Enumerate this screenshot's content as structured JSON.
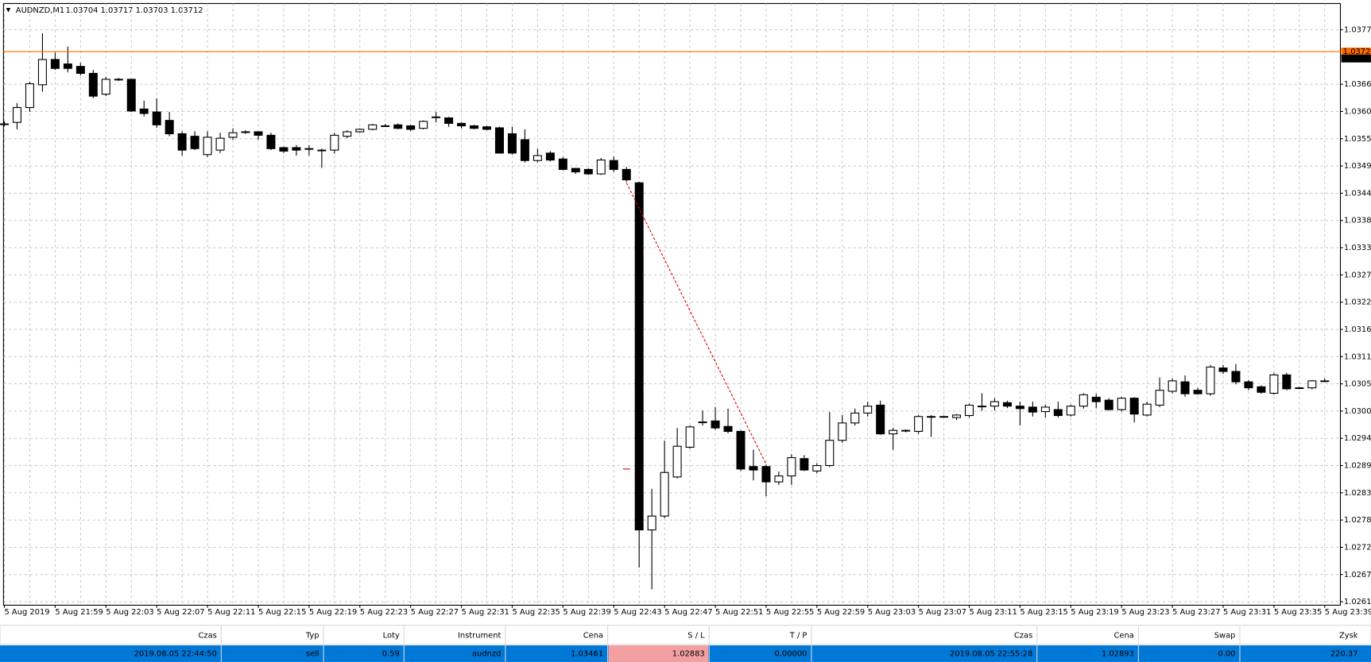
{
  "chart_data": {
    "type": "candlestick",
    "title": "AUDNZD,M1",
    "ohlc_text": "1.03704 1.03717 1.03703 1.03712",
    "categories": [
      "5 Aug 2019",
      null,
      null,
      null,
      "5 Aug 21:59",
      null,
      null,
      null,
      "5 Aug 22:03",
      null,
      null,
      null,
      "5 Aug 22:07",
      null,
      null,
      null,
      "5 Aug 22:11",
      null,
      null,
      null,
      "5 Aug 22:15",
      null,
      null,
      null,
      "5 Aug 22:19",
      null,
      null,
      null,
      "5 Aug 22:23",
      null,
      null,
      null,
      "5 Aug 22:27",
      null,
      null,
      null,
      "5 Aug 22:31",
      null,
      null,
      null,
      "5 Aug 22:35",
      null,
      null,
      null,
      "5 Aug 22:39",
      null,
      null,
      null,
      "5 Aug 22:43",
      null,
      null,
      null,
      "5 Aug 22:47",
      null,
      null,
      null,
      "5 Aug 22:51",
      null,
      null,
      null,
      "5 Aug 22:55",
      null,
      null,
      null,
      "5 Aug 22:59",
      null,
      null,
      null,
      "5 Aug 23:03",
      null,
      null,
      null,
      "5 Aug 23:07",
      null,
      null,
      null,
      "5 Aug 23:11",
      null,
      null,
      null,
      "5 Aug 23:15",
      null,
      null,
      null,
      "5 Aug 23:19",
      null,
      null,
      null,
      "5 Aug 23:23",
      null,
      null,
      null,
      "5 Aug 23:27",
      null,
      null,
      null,
      "5 Aug 23:31",
      null,
      null,
      null,
      "5 Aug 23:35",
      null,
      null,
      null,
      "5 Aug 23:39"
    ],
    "open": [
      1.0358,
      1.03583,
      1.03613,
      1.03659,
      1.0371,
      1.03701,
      1.03696,
      1.03682,
      1.0364,
      1.0367,
      1.0367,
      1.0361,
      1.03604,
      1.03587,
      1.0356,
      1.03555,
      1.03518,
      1.03527,
      1.03553,
      1.03564,
      1.03564,
      1.03557,
      1.03532,
      1.03532,
      1.0353,
      1.03527,
      1.03527,
      1.03555,
      1.03564,
      1.03569,
      1.03576,
      1.03578,
      1.03576,
      1.03571,
      1.03594,
      1.03592,
      1.03581,
      1.03576,
      1.03574,
      1.03572,
      1.0356,
      1.03548,
      1.03506,
      1.03521,
      1.03509,
      1.0349,
      1.03488,
      1.03479,
      1.03506,
      1.03488,
      1.03461,
      1.0276,
      1.02788,
      1.02867,
      1.02927,
      1.02978,
      1.0298,
      1.02969,
      1.02959,
      1.02888,
      1.02888,
      1.02857,
      1.02869,
      1.02904,
      1.02879,
      1.0289,
      1.02941,
      1.02976,
      1.02996,
      1.03012,
      1.02954,
      1.02961,
      1.02959,
      1.02989,
      1.02989,
      1.02987,
      1.02991,
      1.0301,
      1.0301,
      1.03017,
      1.0301,
      1.03008,
      1.02999,
      1.03003,
      1.02992,
      1.0301,
      1.03028,
      1.03022,
      1.03003,
      1.03026,
      1.02992,
      1.03012,
      1.0304,
      1.03059,
      1.03042,
      1.03035,
      1.03087,
      1.0308,
      1.03059,
      1.03049,
      1.03036,
      1.03073,
      1.03047,
      1.03047,
      1.03061
    ],
    "high": [
      1.03585,
      1.03622,
      1.03665,
      1.03763,
      1.03724,
      1.03736,
      1.03703,
      1.03689,
      1.03675,
      1.03673,
      1.03671,
      1.03627,
      1.03631,
      1.03604,
      1.03565,
      1.03565,
      1.03565,
      1.03562,
      1.03571,
      1.03567,
      1.03565,
      1.03562,
      1.03534,
      1.03537,
      1.03537,
      1.0353,
      1.03562,
      1.03567,
      1.03571,
      1.0358,
      1.0358,
      1.03581,
      1.03578,
      1.03587,
      1.03604,
      1.03594,
      1.03583,
      1.03578,
      1.03576,
      1.03574,
      1.03574,
      1.03569,
      1.0353,
      1.03525,
      1.03513,
      1.03491,
      1.0349,
      1.03511,
      1.03514,
      1.03493,
      1.03463,
      1.02843,
      1.0294,
      1.02966,
      1.02971,
      1.03001,
      1.03008,
      1.03005,
      1.02961,
      1.02922,
      1.02892,
      1.02878,
      1.02913,
      1.02911,
      1.02895,
      1.02998,
      1.02992,
      1.03005,
      1.03019,
      1.03021,
      1.02966,
      1.02963,
      1.02992,
      1.02992,
      1.02991,
      1.02994,
      1.03015,
      1.03036,
      1.03026,
      1.03021,
      1.03019,
      1.03019,
      1.03013,
      1.03019,
      1.03013,
      1.03036,
      1.03035,
      1.03026,
      1.03029,
      1.03028,
      1.03019,
      1.03068,
      1.03066,
      1.03072,
      1.03047,
      1.03093,
      1.03093,
      1.03095,
      1.03063,
      1.03052,
      1.03077,
      1.03077,
      1.03049,
      1.03063,
      1.03066
    ],
    "low": [
      1.03575,
      1.03569,
      1.03604,
      1.03645,
      1.03689,
      1.03684,
      1.03678,
      1.03632,
      1.03636,
      1.03667,
      1.03604,
      1.03595,
      1.03572,
      1.03555,
      1.03516,
      1.03527,
      1.03513,
      1.03521,
      1.03548,
      1.0356,
      1.03548,
      1.03527,
      1.03521,
      1.03516,
      1.03516,
      1.03491,
      1.0352,
      1.03551,
      1.03562,
      1.03567,
      1.03574,
      1.03569,
      1.03565,
      1.03569,
      1.03583,
      1.03574,
      1.03571,
      1.03569,
      1.03567,
      1.0352,
      1.03518,
      1.03502,
      1.03502,
      1.03504,
      1.03486,
      1.03479,
      1.03477,
      1.03477,
      1.03483,
      1.03463,
      1.02684,
      1.0264,
      1.02784,
      1.02864,
      1.02924,
      1.02971,
      1.02962,
      1.02955,
      1.02879,
      1.0286,
      1.02828,
      1.02851,
      1.02851,
      1.02879,
      1.02874,
      1.02887,
      1.02936,
      1.02971,
      1.02989,
      1.02952,
      1.02922,
      1.02957,
      1.02954,
      1.02948,
      1.02987,
      1.02982,
      1.02987,
      1.03001,
      1.03001,
      1.03006,
      1.02971,
      1.02989,
      1.02987,
      1.02987,
      1.02989,
      1.03005,
      1.03006,
      1.03001,
      1.02999,
      1.02977,
      1.02989,
      1.03008,
      1.03036,
      1.03029,
      1.03033,
      1.03031,
      1.03075,
      1.03054,
      1.03042,
      1.03035,
      1.03033,
      1.03042,
      1.03044,
      1.03044,
      1.03059
    ],
    "close": [
      1.0358,
      1.03613,
      1.03661,
      1.0371,
      1.03692,
      1.03692,
      1.03682,
      1.03636,
      1.0367,
      1.0367,
      1.03606,
      1.03601,
      1.03578,
      1.0356,
      1.03527,
      1.0353,
      1.03553,
      1.03551,
      1.03562,
      1.03564,
      1.03557,
      1.0353,
      1.03525,
      1.03527,
      1.0353,
      1.03527,
      1.03557,
      1.03564,
      1.03569,
      1.03578,
      1.03576,
      1.03571,
      1.03569,
      1.03585,
      1.03594,
      1.03581,
      1.03576,
      1.03571,
      1.03569,
      1.03521,
      1.03521,
      1.03506,
      1.03516,
      1.03507,
      1.03488,
      1.03483,
      1.03479,
      1.03507,
      1.03488,
      1.03467,
      1.0276,
      1.02788,
      1.02876,
      1.02929,
      1.02968,
      1.02978,
      1.02966,
      1.02959,
      1.02883,
      1.02881,
      1.02857,
      1.02869,
      1.02906,
      1.02881,
      1.0289,
      1.02941,
      1.02976,
      1.02996,
      1.0301,
      1.02954,
      1.02961,
      1.02961,
      1.02989,
      1.02989,
      1.02989,
      1.02992,
      1.03012,
      1.0301,
      1.03019,
      1.0301,
      1.03005,
      1.02998,
      1.03008,
      1.02991,
      1.0301,
      1.03033,
      1.03019,
      1.03003,
      1.03026,
      1.02994,
      1.03014,
      1.03042,
      1.03061,
      1.03035,
      1.03035,
      1.03089,
      1.0308,
      1.03059,
      1.03047,
      1.03038,
      1.03073,
      1.03045,
      1.03047,
      1.03061,
      1.03061
    ],
    "up_color": "#ffffff",
    "down_color": "#000000",
    "ylim": [
      1.02608,
      1.03823
    ],
    "yticks": [
      {
        "value": 1.0377,
        "label": "1.03770"
      },
      {
        "value": 1.0366,
        "label": "1.03660"
      },
      {
        "value": 1.03605,
        "label": "1.03605"
      },
      {
        "value": 1.0355,
        "label": "1.03550"
      },
      {
        "value": 1.03495,
        "label": "1.03495"
      },
      {
        "value": 1.0344,
        "label": "1.03440"
      },
      {
        "value": 1.03385,
        "label": "1.03385"
      },
      {
        "value": 1.0333,
        "label": "1.03330"
      },
      {
        "value": 1.03275,
        "label": "1.03275"
      },
      {
        "value": 1.0322,
        "label": "1.03220"
      },
      {
        "value": 1.03165,
        "label": "1.03165"
      },
      {
        "value": 1.0311,
        "label": "1.03110"
      },
      {
        "value": 1.03055,
        "label": "1.03055"
      },
      {
        "value": 1.03,
        "label": "1.03000"
      },
      {
        "value": 1.02945,
        "label": "1.02945"
      },
      {
        "value": 1.0289,
        "label": "1.02890"
      },
      {
        "value": 1.02835,
        "label": "1.02835"
      },
      {
        "value": 1.0278,
        "label": "1.02780"
      },
      {
        "value": 1.02725,
        "label": "1.02725"
      },
      {
        "value": 1.0267,
        "label": "1.02670"
      },
      {
        "value": 1.02615,
        "label": "1.02615"
      }
    ],
    "grid": true,
    "price_lines": [
      {
        "value": 1.03726,
        "color": "#ff6a00"
      },
      {
        "value": 1.03712,
        "color": "#000000"
      }
    ]
  },
  "table": {
    "header": [
      "Czas",
      "Typ",
      "Loty",
      "Instrument",
      "Cena",
      "S / L",
      "T / P",
      "Czas",
      "Cena",
      "Swap",
      "Zysk"
    ],
    "rows": [
      [
        "2019.08.05 22:44:50",
        "sell",
        "0.59",
        "audnzd",
        "1.03461",
        "1.02883",
        "0.00000",
        "2019.08.05 22:55:28",
        "1.02893",
        "0.00",
        "220.37"
      ]
    ]
  }
}
